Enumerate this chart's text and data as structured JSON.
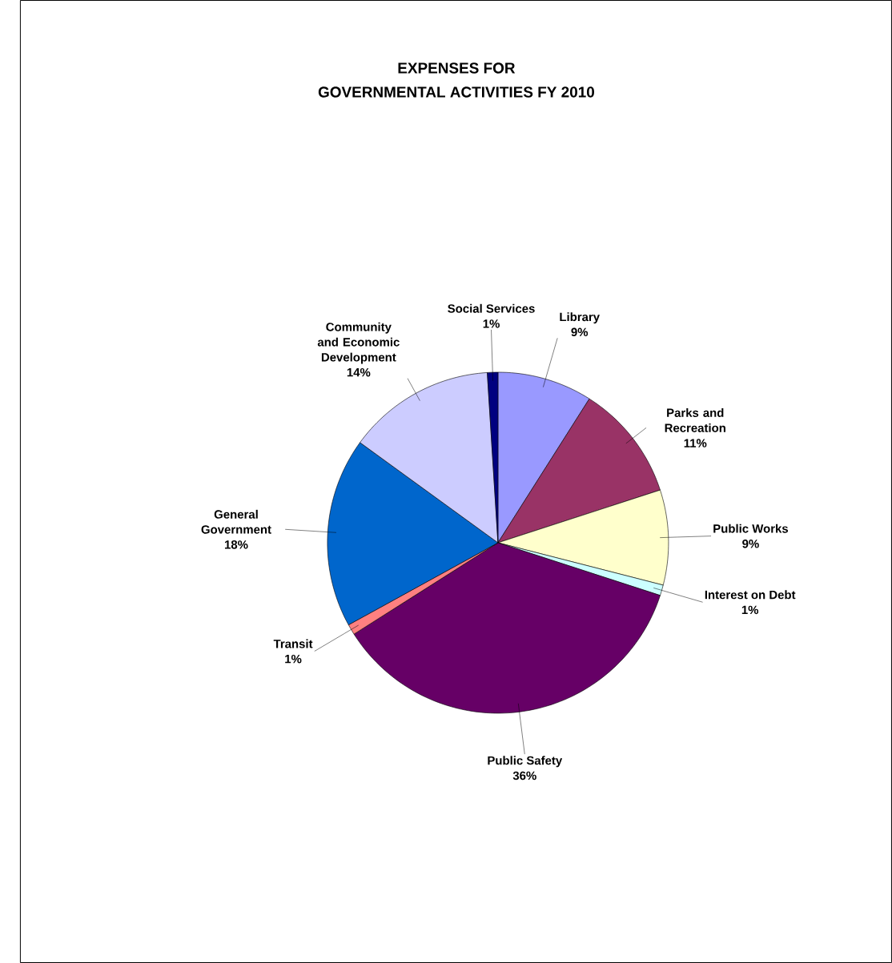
{
  "chart_data": {
    "type": "pie",
    "title": "EXPENSES FOR",
    "subtitle": "GOVERNMENTAL ACTIVITIES FY 2010",
    "categories": [
      "Library",
      "Parks and Recreation",
      "Public Works",
      "Interest on Debt",
      "Public Safety",
      "Transit",
      "General Government",
      "Community and Economic Development",
      "Social Services"
    ],
    "values": [
      9,
      11,
      9,
      1,
      36,
      1,
      18,
      14,
      1
    ],
    "colors": [
      "#9999ff",
      "#993366",
      "#ffffcc",
      "#ccffff",
      "#660066",
      "#ff8080",
      "#0066cc",
      "#ccccff",
      "#000080"
    ],
    "value_labels": [
      "9%",
      "11%",
      "9%",
      "1%",
      "36%",
      "1%",
      "18%",
      "14%",
      "1%"
    ]
  }
}
